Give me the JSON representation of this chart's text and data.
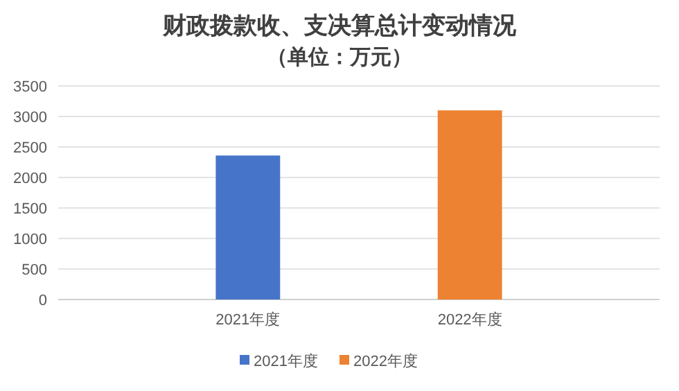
{
  "chart_data": {
    "type": "bar",
    "title": "财政拨款收、支决算总计变动情况",
    "subtitle": "（单位：万元）",
    "categories": [
      "2021年度",
      "2022年度"
    ],
    "series": [
      {
        "name": "2021年度",
        "color": "#4674c8",
        "values": [
          2360,
          null
        ]
      },
      {
        "name": "2022年度",
        "color": "#ed8232",
        "values": [
          null,
          3100
        ]
      }
    ],
    "ylim": [
      0,
      3500
    ],
    "yticks": [
      0,
      500,
      1000,
      1500,
      2000,
      2500,
      3000,
      3500
    ],
    "grid": "y",
    "legend": "bottom"
  }
}
